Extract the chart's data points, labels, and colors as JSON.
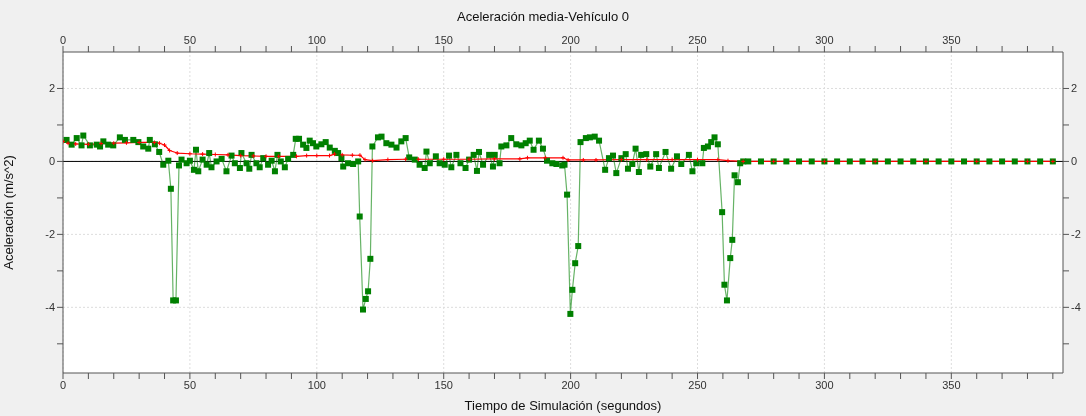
{
  "chart_data": {
    "type": "line",
    "title": "Aceleración media-Vehículo 0",
    "xlabel": "Tiempo de Simulación (segundos)",
    "ylabel": "Aceleración (m/s^2)",
    "xlim": [
      0,
      394
    ],
    "xticks": [
      0,
      {
        "value": 10,
        "label": null
      },
      {
        "value": 20,
        "label": null
      },
      {
        "value": 30,
        "label": null
      },
      {
        "value": 40,
        "label": null
      },
      50,
      {
        "value": 60,
        "label": null
      },
      {
        "value": 70,
        "label": null
      },
      {
        "value": 80,
        "label": null
      },
      {
        "value": 90,
        "label": null
      },
      100,
      {
        "value": 110,
        "label": null
      },
      {
        "value": 120,
        "label": null
      },
      {
        "value": 130,
        "label": null
      },
      {
        "value": 140,
        "label": null
      },
      150,
      {
        "value": 160,
        "label": null
      },
      {
        "value": 170,
        "label": null
      },
      {
        "value": 180,
        "label": null
      },
      {
        "value": 190,
        "label": null
      },
      200,
      {
        "value": 210,
        "label": null
      },
      {
        "value": 220,
        "label": null
      },
      {
        "value": 230,
        "label": null
      },
      {
        "value": 240,
        "label": null
      },
      250,
      {
        "value": 260,
        "label": null
      },
      {
        "value": 270,
        "label": null
      },
      {
        "value": 280,
        "label": null
      },
      {
        "value": 290,
        "label": null
      },
      300,
      {
        "value": 310,
        "label": null
      },
      {
        "value": 320,
        "label": null
      },
      {
        "value": 330,
        "label": null
      },
      {
        "value": 340,
        "label": null
      },
      350,
      {
        "value": 360,
        "label": null
      },
      {
        "value": 370,
        "label": null
      },
      {
        "value": 380,
        "label": null
      },
      {
        "value": 390,
        "label": null
      }
    ],
    "x2lim": [
      0,
      394
    ],
    "x2ticks": [
      0,
      {
        "value": 10,
        "label": null
      },
      {
        "value": 20,
        "label": null
      },
      {
        "value": 30,
        "label": null
      },
      {
        "value": 40,
        "label": null
      },
      50,
      {
        "value": 60,
        "label": null
      },
      {
        "value": 70,
        "label": null
      },
      {
        "value": 80,
        "label": null
      },
      {
        "value": 90,
        "label": null
      },
      100,
      {
        "value": 110,
        "label": null
      },
      {
        "value": 120,
        "label": null
      },
      {
        "value": 130,
        "label": null
      },
      {
        "value": 140,
        "label": null
      },
      150,
      {
        "value": 160,
        "label": null
      },
      {
        "value": 170,
        "label": null
      },
      {
        "value": 180,
        "label": null
      },
      {
        "value": 190,
        "label": null
      },
      200,
      {
        "value": 210,
        "label": null
      },
      {
        "value": 220,
        "label": null
      },
      {
        "value": 230,
        "label": null
      },
      {
        "value": 240,
        "label": null
      },
      250,
      {
        "value": 260,
        "label": null
      },
      {
        "value": 270,
        "label": null
      },
      {
        "value": 280,
        "label": null
      },
      {
        "value": 290,
        "label": null
      },
      300,
      {
        "value": 310,
        "label": null
      },
      {
        "value": 320,
        "label": null
      },
      {
        "value": 330,
        "label": null
      },
      {
        "value": 340,
        "label": null
      },
      350,
      {
        "value": 360,
        "label": null
      },
      {
        "value": 370,
        "label": null
      },
      {
        "value": 380,
        "label": null
      },
      {
        "value": 390,
        "label": null
      }
    ],
    "ylim": [
      -5.8,
      3
    ],
    "yticks": [
      {
        "value": -5,
        "label": null
      },
      -4,
      {
        "value": -3,
        "label": null
      },
      -2,
      {
        "value": -1,
        "label": null
      },
      0,
      {
        "value": 1,
        "label": null
      },
      2
    ],
    "y2lim": [
      -5.8,
      3
    ],
    "y2ticks": [
      {
        "value": -5,
        "label": null
      },
      -4,
      {
        "value": -3,
        "label": null
      },
      -2,
      {
        "value": -1,
        "label": null
      },
      0,
      {
        "value": 1,
        "label": null
      },
      2
    ],
    "grid": true,
    "ref_lines": [
      {
        "axis": "y",
        "value": 0,
        "color": "#000000",
        "line_style": "solid"
      }
    ],
    "series": [
      {
        "color": "#008000",
        "marker": "square",
        "x": [
          1.4,
          3.4,
          5.4,
          7.3,
          8,
          10.6,
          13.3,
          14.6,
          15.9,
          17.8,
          19.8,
          22.4,
          24.4,
          27.7,
          29.7,
          31.6,
          33.6,
          34.2,
          36.2,
          37.9,
          39.5,
          41.5,
          42.5,
          43.4,
          44.5,
          45.7,
          46.7,
          48.7,
          50,
          51.6,
          52.4,
          53.3,
          55,
          56.6,
          57.6,
          58.5,
          60.5,
          62.5,
          64.4,
          66.4,
          67.7,
          69.7,
          70.3,
          72.3,
          73.4,
          74.3,
          76.2,
          77.5,
          78.9,
          80.8,
          82.2,
          83.5,
          84.5,
          85.8,
          87.4,
          88.7,
          90.7,
          91.7,
          93,
          94.6,
          95.9,
          97.2,
          98.5,
          99.8,
          101.8,
          103.5,
          105.1,
          107.1,
          108.4,
          109.7,
          110.4,
          112.3,
          114.3,
          116.3,
          116.9,
          118.2,
          119.3,
          120.2,
          121.1,
          121.9,
          124.1,
          125.5,
          127.4,
          129.4,
          131.4,
          133.3,
          135,
          136.4,
          138.6,
          140.5,
          142.5,
          143.2,
          144.5,
          146.9,
          148.4,
          150.4,
          152.1,
          153,
          155,
          156.6,
          158.6,
          160,
          161.8,
          163.1,
          163.9,
          165.5,
          167.9,
          169.4,
          170.1,
          172,
          172.7,
          174.7,
          176.6,
          178.6,
          180.6,
          182.3,
          183.9,
          185.4,
          187.5,
          189.1,
          190.7,
          192.8,
          194.4,
          196.7,
          197.6,
          198.6,
          199.9,
          200.7,
          201.8,
          203,
          203.9,
          206,
          207.6,
          209.5,
          211.2,
          213.6,
          215.1,
          216.7,
          218,
          220,
          221.7,
          222.6,
          224.3,
          225.6,
          226.9,
          227.8,
          229.8,
          231.4,
          233.7,
          234.8,
          237.4,
          239.6,
          241.9,
          243.6,
          246.6,
          248,
          249.5,
          251.9,
          252.5,
          254.1,
          255.4,
          256.7,
          258,
          259.7,
          260.6,
          261.6,
          262.9,
          263.7,
          264.6,
          265.9,
          266.8,
          268,
          270,
          275,
          280,
          285,
          290,
          295,
          300,
          305,
          310,
          315,
          320,
          325,
          330,
          335,
          340,
          345,
          350,
          355,
          360,
          365,
          370,
          375,
          380,
          385,
          390
        ],
        "values": [
          0.59,
          0.46,
          0.64,
          0.44,
          0.71,
          0.44,
          0.46,
          0.41,
          0.55,
          0.46,
          0.44,
          0.66,
          0.59,
          0.59,
          0.53,
          0.41,
          0.35,
          0.59,
          0.47,
          0.26,
          -0.09,
          0.02,
          -0.75,
          -3.81,
          -3.81,
          -0.11,
          0.05,
          -0.05,
          0.02,
          -0.23,
          0.32,
          -0.27,
          0.05,
          -0.09,
          0.23,
          -0.16,
          0,
          0.07,
          -0.27,
          0.16,
          -0.05,
          -0.18,
          0.23,
          -0.05,
          -0.2,
          0.18,
          -0.05,
          -0.16,
          0.09,
          -0.09,
          0.02,
          -0.27,
          0.18,
          0,
          -0.16,
          0.07,
          0.18,
          0.62,
          0.62,
          0.46,
          0.37,
          0.57,
          0.5,
          0.41,
          0.47,
          0.53,
          0.38,
          0.29,
          0.23,
          0.09,
          -0.14,
          -0.05,
          -0.07,
          0,
          -1.51,
          -4.06,
          -3.77,
          -3.56,
          -2.67,
          0.41,
          0.66,
          0.68,
          0.5,
          0.46,
          0.38,
          0.55,
          0.64,
          0.11,
          0.05,
          -0.09,
          -0.18,
          0.27,
          -0.05,
          0.14,
          -0.05,
          -0.09,
          0.16,
          -0.16,
          0.18,
          -0.05,
          -0.18,
          0.05,
          0.18,
          -0.26,
          0.26,
          -0.09,
          0.18,
          -0.14,
          0.18,
          -0.05,
          0.41,
          0.44,
          0.64,
          0.47,
          0.44,
          0.5,
          0.57,
          0.32,
          0.57,
          0.35,
          0.02,
          -0.05,
          -0.07,
          -0.11,
          -0.09,
          -0.91,
          -4.18,
          -3.52,
          -2.79,
          -2.32,
          0.53,
          0.64,
          0.66,
          0.68,
          0.57,
          -0.23,
          0.09,
          0.16,
          -0.32,
          0.09,
          0.2,
          -0.2,
          -0.07,
          0.35,
          -0.29,
          0.18,
          0.2,
          -0.14,
          0.2,
          -0.18,
          0.26,
          -0.2,
          0.14,
          -0.07,
          0.18,
          -0.27,
          -0.05,
          -0.05,
          0.37,
          0.41,
          0.53,
          0.66,
          0.47,
          -1.39,
          -3.38,
          -3.81,
          -2.65,
          -2.15,
          -0.38,
          -0.57,
          -0.05,
          0,
          0,
          0,
          0,
          0,
          0,
          0,
          0,
          0,
          0,
          0,
          0,
          0,
          0,
          0,
          0,
          0,
          0,
          0,
          0,
          0,
          0,
          0,
          0,
          0,
          0
        ]
      },
      {
        "color": "#ff0000",
        "marker": "cross",
        "x": [
          0,
          2,
          5,
          10,
          15,
          20,
          25,
          30,
          36,
          38,
          40,
          42,
          45,
          50,
          55,
          60,
          65,
          70,
          75,
          80,
          85,
          92,
          96,
          100,
          105,
          107,
          110,
          114,
          117,
          119,
          122,
          128,
          135,
          140,
          150,
          160,
          170,
          180,
          183,
          190,
          197,
          199,
          205,
          210,
          220,
          230,
          240,
          250,
          258,
          262,
          268,
          280,
          300,
          320,
          340,
          360,
          380,
          390
        ],
        "values": [
          0.55,
          0.5,
          0.48,
          0.47,
          0.49,
          0.5,
          0.51,
          0.52,
          0.52,
          0.5,
          0.45,
          0.3,
          0.23,
          0.21,
          0.2,
          0.19,
          0.18,
          0.16,
          0.15,
          0.14,
          0.14,
          0.14,
          0.16,
          0.16,
          0.16,
          0.2,
          0.18,
          0.17,
          0.17,
          0.05,
          0.02,
          0.05,
          0.06,
          0.06,
          0.06,
          0.06,
          0.07,
          0.07,
          0.1,
          0.1,
          0.1,
          0.04,
          0.04,
          0.04,
          0.05,
          0.05,
          0.05,
          0.05,
          0.05,
          0.02,
          0,
          0,
          0,
          0,
          0,
          0,
          0,
          0
        ]
      }
    ]
  }
}
